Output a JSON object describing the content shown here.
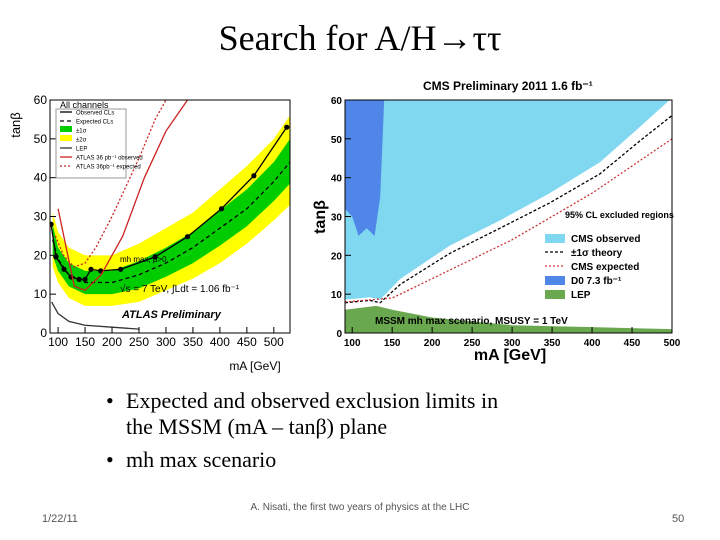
{
  "slide": {
    "title": "Search for A/H→ττ",
    "bullets": [
      "Expected and observed exclusion limits in the MSSM (mA – tanβ) plane",
      "mh max scenario"
    ],
    "date": "1/22/11",
    "footer": "A. Nisati, the first two years of physics at the LHC",
    "page": "50"
  },
  "chart_data": [
    {
      "type": "line",
      "xlabel": "mA [GeV]",
      "ylabel": "tanβ",
      "xlim": [
        85,
        530
      ],
      "ylim": [
        0,
        60
      ],
      "xticks": [
        100,
        150,
        200,
        250,
        300,
        350,
        400,
        450,
        500
      ],
      "yticks": [
        0,
        10,
        20,
        30,
        40,
        50,
        60
      ],
      "annotations": [
        "All channels",
        "mh max, μ>0",
        "√s = 7 TeV, ∫Ldt = 1.06 fb⁻¹",
        "ATLAS Preliminary"
      ],
      "series": [
        {
          "name": "±2σ",
          "color": "#ffff00",
          "x": [
            90,
            100,
            120,
            150,
            200,
            250,
            300,
            350,
            400,
            450,
            500,
            530
          ],
          "lower": [
            17,
            13,
            9,
            7,
            7,
            8,
            11,
            14,
            18,
            23,
            29,
            33
          ],
          "upper": [
            31,
            26,
            22,
            20,
            20,
            23,
            27,
            31,
            37,
            43,
            50,
            56
          ]
        },
        {
          "name": "±1σ",
          "color": "#00cc00",
          "x": [
            90,
            100,
            120,
            150,
            200,
            250,
            300,
            350,
            400,
            450,
            500,
            530
          ],
          "lower": [
            20,
            16,
            12,
            10,
            10,
            11.5,
            14.5,
            18,
            22.5,
            27.5,
            34,
            38.5
          ],
          "upper": [
            28,
            22,
            18,
            16,
            16,
            18.5,
            22,
            26,
            31.5,
            37,
            44,
            50
          ]
        },
        {
          "name": "Expected CLs",
          "color": "#000000",
          "dash": "4,3",
          "x": [
            90,
            100,
            120,
            150,
            200,
            250,
            300,
            350,
            400,
            450,
            500,
            530
          ],
          "values": [
            24,
            19,
            15,
            13,
            13,
            15,
            18,
            22,
            27,
            32,
            39,
            44
          ]
        },
        {
          "name": "Observed CLs",
          "color": "#000000",
          "marker": true,
          "x": [
            87,
            96,
            111,
            124,
            139,
            150,
            161,
            179,
            216,
            280,
            340,
            403,
            463,
            524
          ],
          "values": [
            28,
            19.6,
            16.4,
            14.4,
            13.8,
            13.8,
            16.4,
            16,
            16.4,
            19.6,
            24.8,
            32,
            40.5,
            53
          ]
        },
        {
          "name": "LEP",
          "color": "#333333",
          "x": [
            88,
            100,
            120,
            150,
            200,
            250
          ],
          "values": [
            8,
            5,
            3,
            2,
            1.5,
            1
          ]
        },
        {
          "name": "ATLAS 36 pb⁻¹ observed",
          "color": "#cc2222",
          "x": [
            100,
            130,
            150,
            180,
            220,
            260,
            300,
            340
          ],
          "values": [
            32,
            12,
            11,
            15,
            25,
            40,
            52,
            60
          ]
        },
        {
          "name": "ATLAS 36pb⁻¹ expected",
          "color": "#cc2222",
          "dash": "2,2",
          "x": [
            95,
            110,
            130,
            150,
            170,
            200,
            250,
            280,
            300
          ],
          "values": [
            25,
            20,
            17,
            18,
            22,
            30,
            45,
            55,
            60
          ]
        }
      ]
    },
    {
      "type": "area",
      "title": "CMS Preliminary 2011 1.6 fb⁻¹",
      "xlabel": "mA [GeV]",
      "ylabel": "tanβ",
      "xlim": [
        91,
        500
      ],
      "ylim": [
        0,
        60
      ],
      "xticks": [
        100,
        150,
        200,
        250,
        300,
        350,
        400,
        450,
        500
      ],
      "yticks": [
        0,
        10,
        20,
        30,
        40,
        50,
        60
      ],
      "annotations": [
        "95% CL excluded regions",
        "MSSM mh max scenario, MSUSY = 1 TeV"
      ],
      "series": [
        {
          "name": "CMS observed",
          "color": "#7fd8f0",
          "fill": "above",
          "x": [
            91,
            122,
            135,
            160,
            222,
            285,
            347,
            410,
            460,
            497
          ],
          "values": [
            8.6,
            9.2,
            8.6,
            13.9,
            22.5,
            29,
            36,
            44,
            53.1,
            60
          ]
        },
        {
          "name": "±1σ theory",
          "color": "#000000",
          "dash": "3,2",
          "x": [
            91,
            122,
            135,
            160,
            222,
            285,
            347,
            410,
            460,
            500
          ],
          "values": [
            7.8,
            8.4,
            7.8,
            12.5,
            20.5,
            27,
            33.5,
            41,
            49.5,
            56
          ]
        },
        {
          "name": "CMS expected",
          "color": "#cc3333",
          "dash": "2,2",
          "x": [
            91,
            150,
            200,
            250,
            300,
            350,
            400,
            450,
            500
          ],
          "values": [
            8,
            9,
            14,
            19,
            24,
            30,
            36,
            43,
            50
          ]
        },
        {
          "name": "D0 7.3 fb⁻¹",
          "color": "#4f86e8",
          "fill": "above",
          "x": [
            91,
            100,
            108,
            118,
            128,
            135,
            140
          ],
          "values": [
            32,
            30,
            25,
            27,
            25,
            35,
            60
          ]
        },
        {
          "name": "LEP",
          "color": "#6aa84f",
          "fill": "below",
          "x": [
            91,
            130,
            150,
            200,
            250,
            300,
            400,
            500
          ],
          "values": [
            6,
            7,
            6,
            4,
            3,
            2,
            1.5,
            1
          ]
        }
      ]
    }
  ]
}
